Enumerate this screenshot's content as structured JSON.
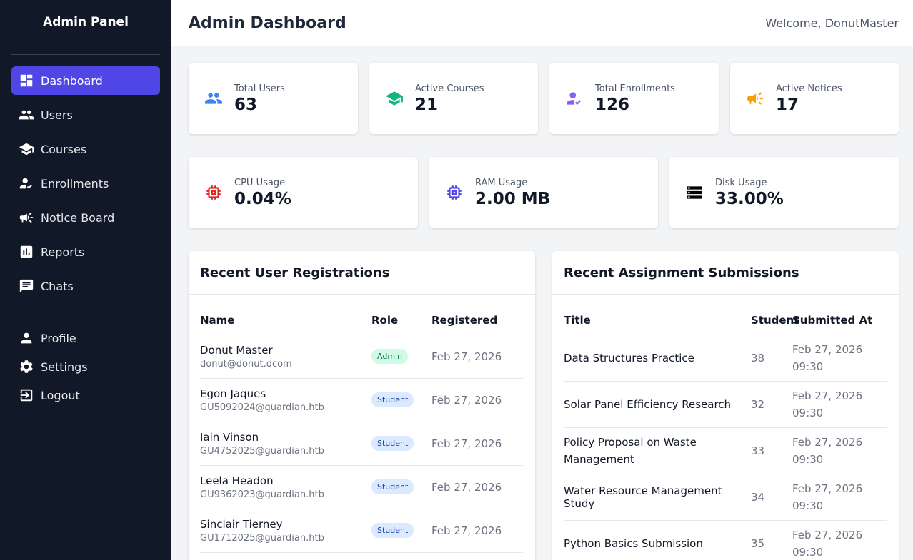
{
  "sidebar": {
    "brand": "Admin Panel",
    "items": [
      {
        "label": "Dashboard",
        "icon": "dashboard-icon"
      },
      {
        "label": "Users",
        "icon": "users-icon"
      },
      {
        "label": "Courses",
        "icon": "graduation-cap-icon"
      },
      {
        "label": "Enrollments",
        "icon": "user-check-icon"
      },
      {
        "label": "Notice Board",
        "icon": "megaphone-icon"
      },
      {
        "label": "Reports",
        "icon": "chart-icon"
      },
      {
        "label": "Chats",
        "icon": "chat-icon"
      }
    ],
    "secondary": [
      {
        "label": "Profile",
        "icon": "person-icon"
      },
      {
        "label": "Settings",
        "icon": "gear-icon"
      },
      {
        "label": "Logout",
        "icon": "logout-icon"
      }
    ]
  },
  "header": {
    "title": "Admin Dashboard",
    "welcome": "Welcome, DonutMaster"
  },
  "stats": [
    {
      "label": "Total Users",
      "value": "63",
      "icon": "users-icon",
      "color": "#3b82f6"
    },
    {
      "label": "Active Courses",
      "value": "21",
      "icon": "graduation-cap-icon",
      "color": "#10b981"
    },
    {
      "label": "Total Enrollments",
      "value": "126",
      "icon": "user-check-icon",
      "color": "#8b5cf6"
    },
    {
      "label": "Active Notices",
      "value": "17",
      "icon": "megaphone-icon",
      "color": "#f59e0b"
    }
  ],
  "system": [
    {
      "label": "CPU Usage",
      "value": "0.04%",
      "icon": "cpu-icon",
      "color": "#dc2626"
    },
    {
      "label": "RAM Usage",
      "value": "2.00 MB",
      "icon": "memory-icon",
      "color": "#4f46e5"
    },
    {
      "label": "Disk Usage",
      "value": "33.00%",
      "icon": "storage-icon",
      "color": "#000000"
    }
  ],
  "registrations": {
    "title": "Recent User Registrations",
    "columns": [
      "Name",
      "Role",
      "Registered"
    ],
    "rows": [
      {
        "name": "Donut Master",
        "email": "donut@donut.dcom",
        "role": "Admin",
        "date": "Feb 27, 2026"
      },
      {
        "name": "Egon Jaques",
        "email": "GU5092024@guardian.htb",
        "role": "Student",
        "date": "Feb 27, 2026"
      },
      {
        "name": "Iain Vinson",
        "email": "GU4752025@guardian.htb",
        "role": "Student",
        "date": "Feb 27, 2026"
      },
      {
        "name": "Leela Headon",
        "email": "GU9362023@guardian.htb",
        "role": "Student",
        "date": "Feb 27, 2026"
      },
      {
        "name": "Sinclair Tierney",
        "email": "GU1712025@guardian.htb",
        "role": "Student",
        "date": "Feb 27, 2026"
      }
    ]
  },
  "submissions": {
    "title": "Recent Assignment Submissions",
    "columns": [
      "Title",
      "Student",
      "Submitted At"
    ],
    "rows": [
      {
        "title": "Data Structures Practice",
        "student": "38",
        "date": "Feb 27, 2026",
        "time": "09:30"
      },
      {
        "title": "Solar Panel Efficiency Research",
        "student": "32",
        "date": "Feb 27, 2026",
        "time": "09:30"
      },
      {
        "title": "Policy Proposal on Waste Management",
        "student": "33",
        "date": "Feb 27, 2026",
        "time": "09:30"
      },
      {
        "title": "Water Resource Management Study",
        "student": "34",
        "date": "Feb 27, 2026",
        "time": "09:30"
      },
      {
        "title": "Python Basics Submission",
        "student": "35",
        "date": "Feb 27, 2026",
        "time": "09:30"
      }
    ]
  }
}
